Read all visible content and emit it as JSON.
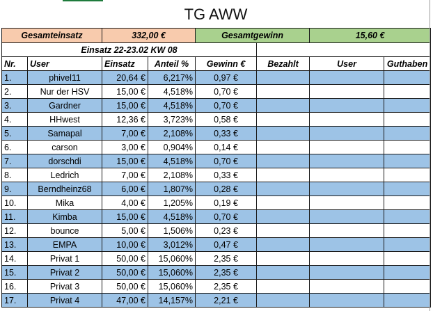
{
  "title": "TG AWW",
  "summary": {
    "einsatz_label": "Gesamteinsatz",
    "einsatz_value": "332,00 €",
    "gewinn_label": "Gesamtgewinn",
    "gewinn_value": "15,60 €"
  },
  "subtitle": "Einsatz 22-23.02 KW 08",
  "headers": {
    "nr": "Nr.",
    "user": "User",
    "einsatz": "Einsatz",
    "anteil": "Anteil %",
    "gewinn": "Gewinn €",
    "bezahlt": "Bezahlt",
    "user2": "User",
    "guthaben": "Guthaben"
  },
  "colors": {
    "orange": "#f8cbad",
    "green": "#a9d18e",
    "blue_row": "#9dc3e6"
  },
  "rows": [
    {
      "nr": "1.",
      "user": "phivel11",
      "einsatz": "20,64 €",
      "anteil": "6,217%",
      "gewinn": "0,97 €"
    },
    {
      "nr": "2.",
      "user": "Nur der HSV",
      "einsatz": "15,00 €",
      "anteil": "4,518%",
      "gewinn": "0,70 €"
    },
    {
      "nr": "3.",
      "user": "Gardner",
      "einsatz": "15,00 €",
      "anteil": "4,518%",
      "gewinn": "0,70 €"
    },
    {
      "nr": "4.",
      "user": "HHwest",
      "einsatz": "12,36 €",
      "anteil": "3,723%",
      "gewinn": "0,58 €"
    },
    {
      "nr": "5.",
      "user": "Samapal",
      "einsatz": "7,00 €",
      "anteil": "2,108%",
      "gewinn": "0,33 €"
    },
    {
      "nr": "6.",
      "user": "carson",
      "einsatz": "3,00 €",
      "anteil": "0,904%",
      "gewinn": "0,14 €"
    },
    {
      "nr": "7.",
      "user": "dorschdi",
      "einsatz": "15,00 €",
      "anteil": "4,518%",
      "gewinn": "0,70 €"
    },
    {
      "nr": "8.",
      "user": "Ledrich",
      "einsatz": "7,00 €",
      "anteil": "2,108%",
      "gewinn": "0,33 €"
    },
    {
      "nr": "9.",
      "user": "Berndheinz68",
      "einsatz": "6,00 €",
      "anteil": "1,807%",
      "gewinn": "0,28 €"
    },
    {
      "nr": "10.",
      "user": "Mika",
      "einsatz": "4,00 €",
      "anteil": "1,205%",
      "gewinn": "0,19 €"
    },
    {
      "nr": "11.",
      "user": "Kimba",
      "einsatz": "15,00 €",
      "anteil": "4,518%",
      "gewinn": "0,70 €"
    },
    {
      "nr": "12.",
      "user": "bounce",
      "einsatz": "5,00 €",
      "anteil": "1,506%",
      "gewinn": "0,23 €"
    },
    {
      "nr": "13.",
      "user": "EMPA",
      "einsatz": "10,00 €",
      "anteil": "3,012%",
      "gewinn": "0,47 €"
    },
    {
      "nr": "14.",
      "user": "Privat 1",
      "einsatz": "50,00 €",
      "anteil": "15,060%",
      "gewinn": "2,35 €"
    },
    {
      "nr": "15.",
      "user": "Privat 2",
      "einsatz": "50,00 €",
      "anteil": "15,060%",
      "gewinn": "2,35 €"
    },
    {
      "nr": "16.",
      "user": "Privat 3",
      "einsatz": "50,00 €",
      "anteil": "15,060%",
      "gewinn": "2,35 €"
    },
    {
      "nr": "17.",
      "user": "Privat 4",
      "einsatz": "47,00 €",
      "anteil": "14,157%",
      "gewinn": "2,21 €"
    }
  ]
}
